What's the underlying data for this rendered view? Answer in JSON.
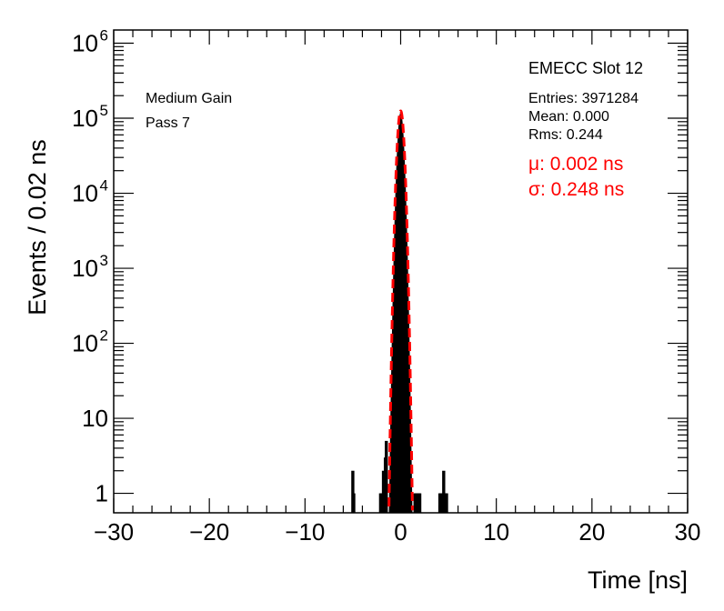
{
  "chart_data": {
    "type": "histogram",
    "xlabel": "Time [ns]",
    "ylabel": "Events / 0.02 ns",
    "xlim": [
      -30,
      30
    ],
    "ylim": [
      0.55,
      1500000
    ],
    "yscale": "log",
    "x_ticks": [
      -30,
      -20,
      -10,
      0,
      10,
      20,
      30
    ],
    "x_tick_labels": [
      "−30",
      "−20",
      "−10",
      "0",
      "10",
      "20",
      "30"
    ],
    "y_tick_labels": [
      {
        "value": 1,
        "base": "1",
        "exp": ""
      },
      {
        "value": 10,
        "base": "10",
        "exp": ""
      },
      {
        "value": 100,
        "base": "10",
        "exp": "2"
      },
      {
        "value": 1000,
        "base": "10",
        "exp": "3"
      },
      {
        "value": 10000,
        "base": "10",
        "exp": "4"
      },
      {
        "value": 100000,
        "base": "10",
        "exp": "5"
      },
      {
        "value": 1000000,
        "base": "10",
        "exp": "6"
      }
    ],
    "labels": {
      "gain": "Medium Gain",
      "pass": "Pass 7"
    },
    "stats": {
      "title": "EMECC Slot 12",
      "entries": "Entries: 3971284",
      "mean": "Mean: 0.000",
      "rms": "Rms: 0.244"
    },
    "fit": {
      "mu_label": "μ: 0.002 ns",
      "sigma_label": "σ: 0.248 ns",
      "mu": 0.002,
      "sigma": 0.248,
      "peak": 125000,
      "color": "#ff0000"
    },
    "histogram": {
      "bin_width": 0.02,
      "color": "#000000",
      "outlier_bins": [
        {
          "x": -5.0,
          "count": 2
        },
        {
          "x": -4.9,
          "count": 1
        },
        {
          "x": -2.1,
          "count": 1
        },
        {
          "x": -2.0,
          "count": 1
        },
        {
          "x": -1.9,
          "count": 1
        },
        {
          "x": -1.8,
          "count": 2
        },
        {
          "x": -1.7,
          "count": 1
        },
        {
          "x": -1.6,
          "count": 3
        },
        {
          "x": -1.5,
          "count": 5
        },
        {
          "x": 1.5,
          "count": 1
        },
        {
          "x": 1.6,
          "count": 1
        },
        {
          "x": 1.7,
          "count": 1
        },
        {
          "x": 1.8,
          "count": 1
        },
        {
          "x": 1.9,
          "count": 1
        },
        {
          "x": 2.0,
          "count": 1
        },
        {
          "x": 4.1,
          "count": 1
        },
        {
          "x": 4.2,
          "count": 1
        },
        {
          "x": 4.3,
          "count": 1
        },
        {
          "x": 4.4,
          "count": 1
        },
        {
          "x": 4.5,
          "count": 2
        },
        {
          "x": 4.6,
          "count": 1
        },
        {
          "x": 4.7,
          "count": 1
        },
        {
          "x": 4.8,
          "count": 1
        }
      ]
    }
  }
}
